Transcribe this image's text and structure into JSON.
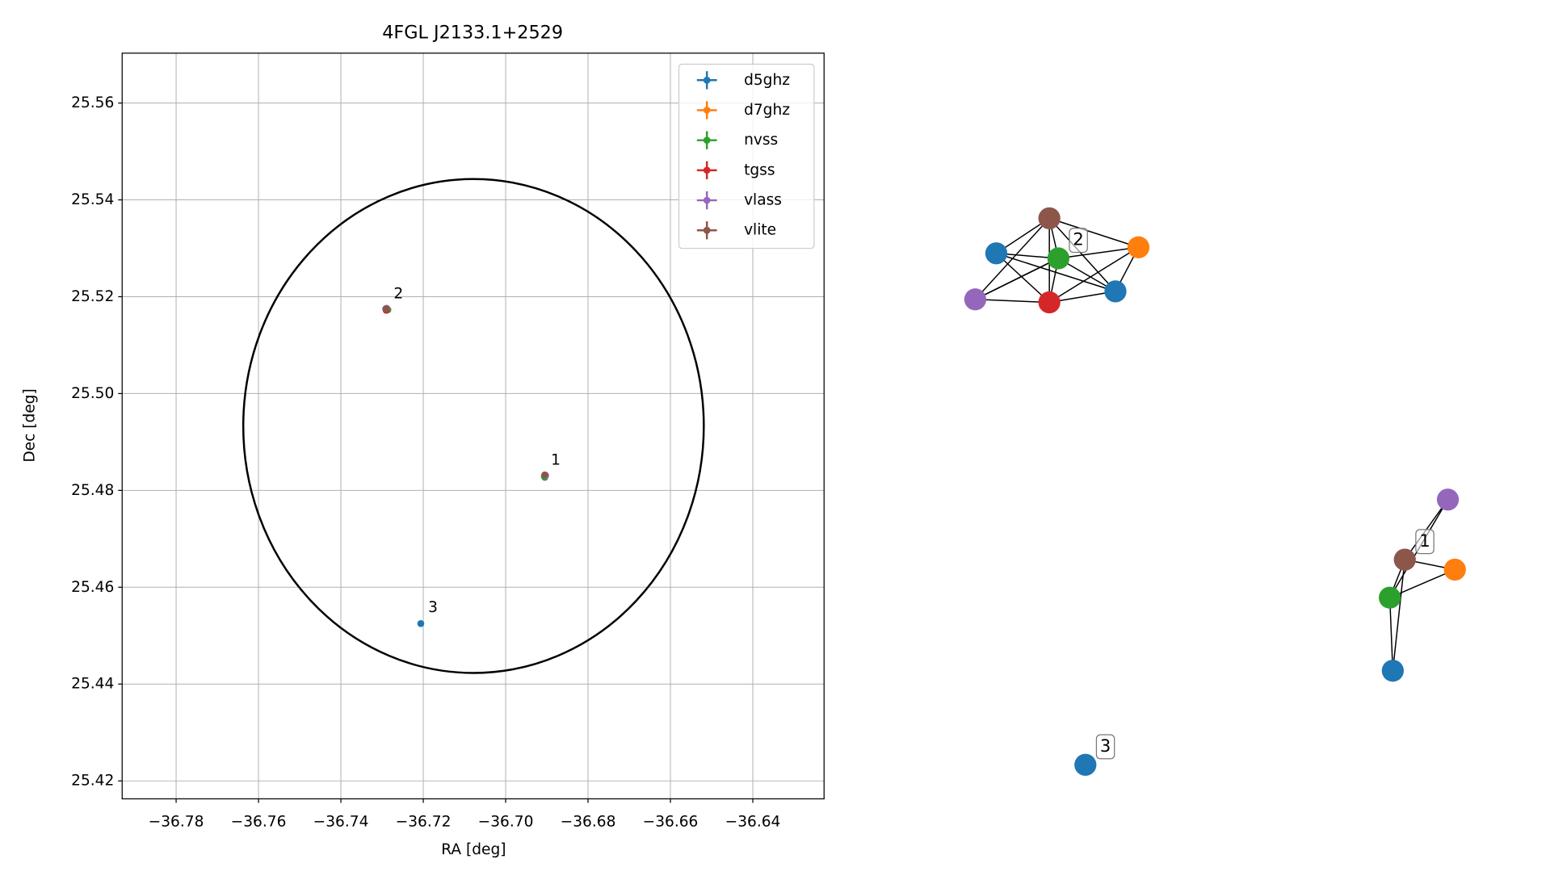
{
  "chart_data": [
    {
      "type": "scatter",
      "title": "4FGL J2133.1+2529",
      "x_label": "RA [deg]",
      "y_label": "Dec [deg]",
      "xlim": [
        -36.7931,
        -36.6227
      ],
      "ylim": [
        25.4163,
        25.5703
      ],
      "xticks": [
        {
          "value": -36.78,
          "label": "−36.78"
        },
        {
          "value": -36.76,
          "label": "−36.76"
        },
        {
          "value": -36.74,
          "label": "−36.74"
        },
        {
          "value": -36.72,
          "label": "−36.72"
        },
        {
          "value": -36.7,
          "label": "−36.70"
        },
        {
          "value": -36.68,
          "label": "−36.68"
        },
        {
          "value": -36.66,
          "label": "−36.66"
        },
        {
          "value": -36.64,
          "label": "−36.64"
        }
      ],
      "yticks": [
        25.42,
        25.44,
        25.46,
        25.48,
        {
          "value": 25.5,
          "label": "25.50"
        },
        25.52,
        25.54,
        25.56
      ],
      "grid": true,
      "legend": "upper right",
      "region": {
        "x": -36.7078,
        "y": 25.4933,
        "rx": 0.0559,
        "ry": 0.051,
        "color": "#000000"
      },
      "series": [
        {
          "name": "d5ghz",
          "color": "#1f77b4",
          "x": [
            -36.7291,
            -36.7289,
            -36.6906,
            -36.7206
          ],
          "y": [
            25.5175,
            25.5173,
            25.4829,
            25.4525
          ]
        },
        {
          "name": "d7ghz",
          "color": "#ff7f0e",
          "x": [
            -36.7288,
            -36.6905
          ],
          "y": [
            25.5174,
            25.483
          ]
        },
        {
          "name": "nvss",
          "color": "#2ca02c",
          "x": [
            -36.7286,
            -36.6905
          ],
          "y": [
            25.5173,
            25.4827
          ]
        },
        {
          "name": "tgss",
          "color": "#d62728",
          "x": [
            -36.729
          ],
          "y": [
            25.5172
          ]
        },
        {
          "name": "vlass",
          "color": "#9467bd",
          "x": [
            -36.7289,
            -36.6903
          ],
          "y": [
            25.5176,
            25.4831
          ]
        },
        {
          "name": "vlite",
          "color": "#8c564b",
          "x": [
            -36.729,
            -36.6905
          ],
          "y": [
            25.5175,
            25.4832
          ]
        }
      ],
      "annotations": [
        {
          "text": "1",
          "x": -36.689,
          "y": 25.4862
        },
        {
          "text": "2",
          "x": -36.7272,
          "y": 25.5206
        },
        {
          "text": "3",
          "x": -36.7188,
          "y": 25.4558
        }
      ]
    },
    {
      "type": "network",
      "nodes": [
        {
          "color": "#8c564b"
        },
        {
          "color": "#1f77b4"
        },
        {
          "color": "#2ca02c"
        },
        {
          "color": "#ff7f0e"
        },
        {
          "color": "#9467bd"
        },
        {
          "color": "#d62728"
        },
        {
          "color": "#1f77b4"
        },
        {
          "color": "#9467bd"
        },
        {
          "color": "#8c564b"
        },
        {
          "color": "#ff7f0e"
        },
        {
          "color": "#2ca02c"
        },
        {
          "color": "#1f77b4"
        },
        {
          "color": "#1f77b4"
        }
      ],
      "edges": [
        [
          0,
          1
        ],
        [
          0,
          2
        ],
        [
          0,
          3
        ],
        [
          0,
          4
        ],
        [
          0,
          5
        ],
        [
          0,
          6
        ],
        [
          1,
          2
        ],
        [
          1,
          5
        ],
        [
          1,
          6
        ],
        [
          2,
          3
        ],
        [
          2,
          4
        ],
        [
          2,
          5
        ],
        [
          2,
          6
        ],
        [
          3,
          5
        ],
        [
          3,
          6
        ],
        [
          4,
          5
        ],
        [
          5,
          6
        ],
        [
          4,
          2
        ],
        [
          7,
          8
        ],
        [
          7,
          10
        ],
        [
          8,
          9
        ],
        [
          8,
          10
        ],
        [
          8,
          11
        ],
        [
          10,
          9
        ],
        [
          10,
          11
        ]
      ],
      "labels": [
        {
          "text": "2",
          "node": 2
        },
        {
          "text": "1",
          "node": 8
        },
        {
          "text": "3",
          "node": 12
        }
      ]
    }
  ]
}
